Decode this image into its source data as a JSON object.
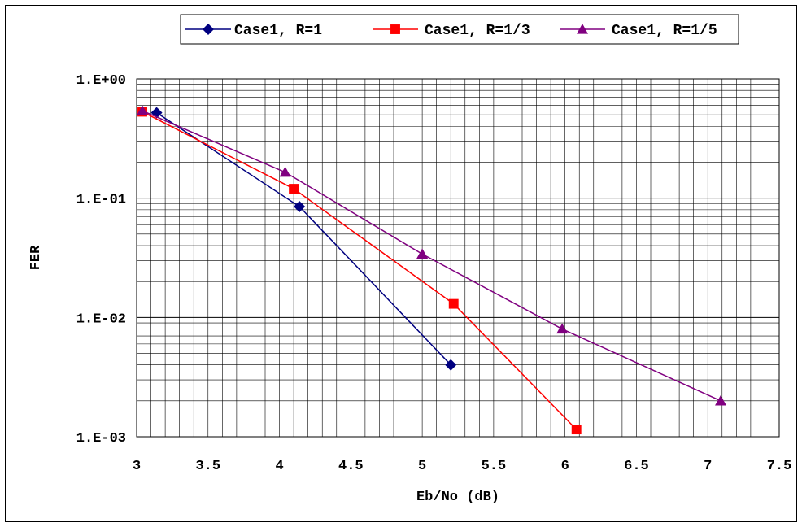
{
  "chart_data": {
    "type": "line",
    "title": "",
    "xlabel": "Eb/No (dB)",
    "ylabel": "FER",
    "xlim": [
      3,
      7.5
    ],
    "ylim": [
      0.001,
      1
    ],
    "y_scale": "log",
    "grid": true,
    "legend_position": "top-right",
    "x_ticks": [
      "3",
      "3.5",
      "4",
      "4.5",
      "5",
      "5.5",
      "6",
      "6.5",
      "7",
      "7.5"
    ],
    "y_ticks": [
      "1.E+00",
      "1.E-01",
      "1.E-02",
      "1.E-03"
    ],
    "series": [
      {
        "name": "Case1, R=1",
        "color": "#000080",
        "marker": "diamond",
        "points": [
          [
            3.14,
            0.52
          ],
          [
            4.14,
            0.085
          ],
          [
            5.2,
            0.004
          ]
        ]
      },
      {
        "name": "Case1, R=1/3",
        "color": "#ff0000",
        "marker": "square",
        "points": [
          [
            3.04,
            0.53
          ],
          [
            4.1,
            0.12
          ],
          [
            5.22,
            0.013
          ],
          [
            6.08,
            0.00115
          ]
        ]
      },
      {
        "name": "Case1, R=1/5",
        "color": "#800080",
        "marker": "triangle",
        "points": [
          [
            3.04,
            0.54
          ],
          [
            4.04,
            0.165
          ],
          [
            5.0,
            0.034
          ],
          [
            5.98,
            0.008
          ],
          [
            7.09,
            0.002
          ]
        ]
      }
    ]
  }
}
